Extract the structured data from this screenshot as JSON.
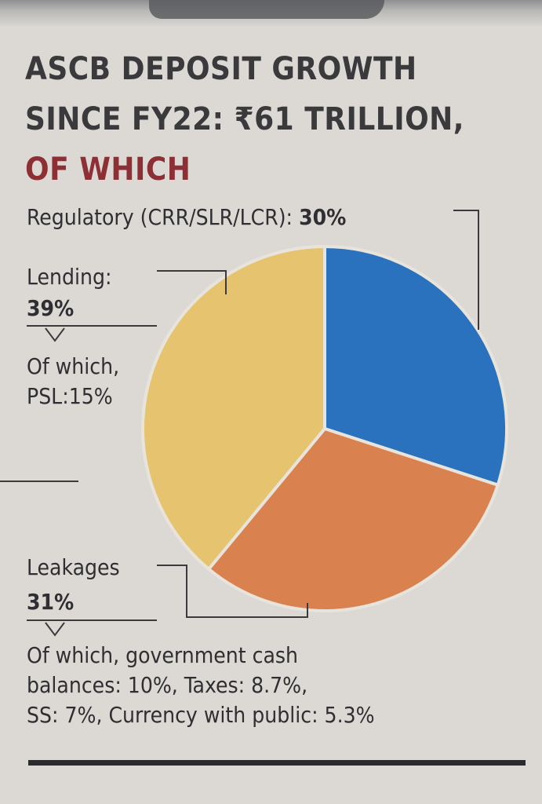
{
  "title": {
    "line1": "ASCB DEPOSIT GROWTH",
    "line2": "SINCE FY22: ₹61 TRILLION,",
    "line3": "OF WHICH"
  },
  "labels": {
    "regulatory_name": "Regulatory (CRR/SLR/LCR):",
    "regulatory_value": "30%",
    "lending_name": "Lending:",
    "lending_value": "39%",
    "lending_sub1": "Of which,",
    "lending_sub2": "PSL:15%",
    "leakages_name": "Leakages",
    "leakages_value": "31%",
    "leakages_sub1": "Of which, government cash",
    "leakages_sub2": "balances: 10%, Taxes: 8.7%,",
    "leakages_sub3": "SS: 7%, Currency with public: 5.3%"
  },
  "colors": {
    "regulatory": "#2a72bd",
    "leakages": "#d9824f",
    "lending": "#e5c36f",
    "title_accent": "#8c3035",
    "separator": "#e8e4dc"
  },
  "chart_data": {
    "type": "pie",
    "title": "ASCB DEPOSIT GROWTH SINCE FY22: ₹61 TRILLION, OF WHICH",
    "categories": [
      "Regulatory (CRR/SLR/LCR)",
      "Leakages",
      "Lending"
    ],
    "values": [
      30,
      31,
      39
    ],
    "unit": "%",
    "start_angle": "12 o'clock",
    "direction": "clockwise"
  }
}
